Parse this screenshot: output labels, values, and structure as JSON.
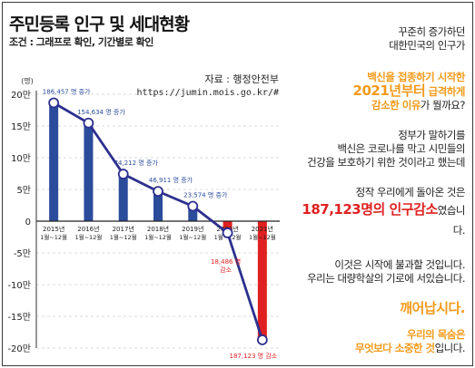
{
  "header": {
    "title": "주민등록 인구 및 세대현황",
    "subtitle": "조건 : 그래프로 확인, 기간별로 확인"
  },
  "source": {
    "label": "자료 : 행정안전부",
    "url": "https://jumin.mois.go.kr/#"
  },
  "colors": {
    "bar_positive": "#2b4c9b",
    "bar_negative": "#e02020",
    "line": "#2d2f8f",
    "accent_orange": "#f39a1a",
    "accent_red": "#e02020"
  },
  "chart_data": {
    "type": "bar",
    "y_unit_label": "(명)",
    "ylim": [
      -200000,
      200000
    ],
    "yticks": [
      200000,
      150000,
      100000,
      50000,
      0,
      -50000,
      -100000,
      -150000,
      -200000
    ],
    "ytick_labels": [
      "20만",
      "15만",
      "10만",
      "5만",
      "0",
      "-5만",
      "-10만",
      "-15만",
      "-20만"
    ],
    "categories": [
      {
        "year": "2015년",
        "period": "1월~12월"
      },
      {
        "year": "2016년",
        "period": "1월~12월"
      },
      {
        "year": "2017년",
        "period": "1월~12월"
      },
      {
        "year": "2018년",
        "period": "1월~12월"
      },
      {
        "year": "2019년",
        "period": "1월~12월"
      },
      {
        "year": "2020년",
        "period": "1월~12월"
      },
      {
        "year": "2021년",
        "period": "1월~12월"
      }
    ],
    "values": [
      186457,
      154634,
      74212,
      46911,
      23574,
      -18486,
      -187123
    ],
    "data_labels": [
      "186,457 명 증가",
      "154,634 명 증가",
      "74,212 명 증가",
      "46,911 명 증가",
      "23,574 명 증가",
      "18,486 명 감소",
      "187,123 명 감소"
    ],
    "grid": true,
    "legend": "none"
  },
  "side_text": {
    "p1_line1": "꾸준히 증가하던",
    "p1_line2": "대한민국의 인구가",
    "p2_line1": "백신을 접종하기 시작한",
    "p2_line2_big": "2021년부터",
    "p2_line2_rest": " 급격하게",
    "p2_line3_orange": "감소한 이유",
    "p2_line3_rest": "가 뭘까요?",
    "p3_line1": "정부가 말하기를",
    "p3_line2": "백신은 코로나를 막고 시민들의",
    "p3_line3": "건강을 보호하기 위한 것이라고 했는데",
    "p4_line1": "정작 우리에게 돌아온 것은",
    "p4_line2_red": "187,123명의 인구감소",
    "p4_line2_rest": "였습니다.",
    "p5_line1": "이것은 시작에 불과할 것입니다.",
    "p5_line2": "우리는 대량학살의 기로에 서있습니다.",
    "p6": "깨어납시다.",
    "p7_line1": "우리의 목숨은",
    "p7_line2_orange": "무엇보다 소중한 것",
    "p7_line2_rest": "입니다."
  }
}
